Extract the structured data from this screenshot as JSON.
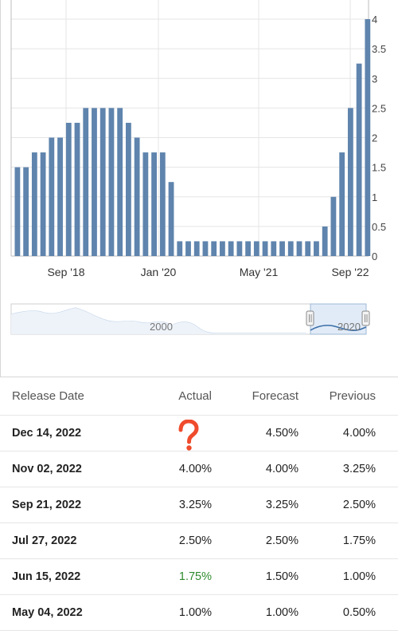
{
  "chart_data": {
    "type": "bar",
    "y_axis": {
      "min": 0,
      "max": 4,
      "ticks": [
        "0",
        "0.5",
        "1",
        "1.5",
        "2",
        "2.5",
        "3",
        "3.5",
        "4"
      ],
      "position": "right"
    },
    "x_tick_labels": [
      "Sep '18",
      "Jan '20",
      "May '21",
      "Sep '22"
    ],
    "values": [
      1.5,
      1.5,
      1.75,
      1.75,
      2,
      2,
      2.25,
      2.25,
      2.5,
      2.5,
      2.5,
      2.5,
      2.5,
      2.25,
      2,
      1.75,
      1.75,
      1.75,
      1.25,
      0.25,
      0.25,
      0.25,
      0.25,
      0.25,
      0.25,
      0.25,
      0.25,
      0.25,
      0.25,
      0.25,
      0.25,
      0.25,
      0.25,
      0.25,
      0.25,
      0.25,
      0.5,
      1,
      1.75,
      2.5,
      3.25,
      4
    ],
    "bar_color": "#5f84ad",
    "grid": true
  },
  "navigator": {
    "labels": [
      "2000",
      "2020"
    ]
  },
  "table": {
    "headers": {
      "date": "Release Date",
      "actual": "Actual",
      "forecast": "Forecast",
      "previous": "Previous"
    },
    "rows": [
      {
        "date": "Dec 14, 2022",
        "actual": "",
        "forecast": "4.50%",
        "previous": "4.00%"
      },
      {
        "date": "Nov 02, 2022",
        "actual": "4.00%",
        "forecast": "4.00%",
        "previous": "3.25%"
      },
      {
        "date": "Sep 21, 2022",
        "actual": "3.25%",
        "forecast": "3.25%",
        "previous": "2.50%"
      },
      {
        "date": "Jul 27, 2022",
        "actual": "2.50%",
        "forecast": "2.50%",
        "previous": "1.75%"
      },
      {
        "date": "Jun 15, 2022",
        "actual": "1.75%",
        "forecast": "1.50%",
        "previous": "1.00%"
      },
      {
        "date": "May 04, 2022",
        "actual": "1.00%",
        "forecast": "1.00%",
        "previous": "0.50%"
      }
    ],
    "pending_marker_color": "#ef4b2c",
    "positive_color": "#2e8b2e"
  }
}
